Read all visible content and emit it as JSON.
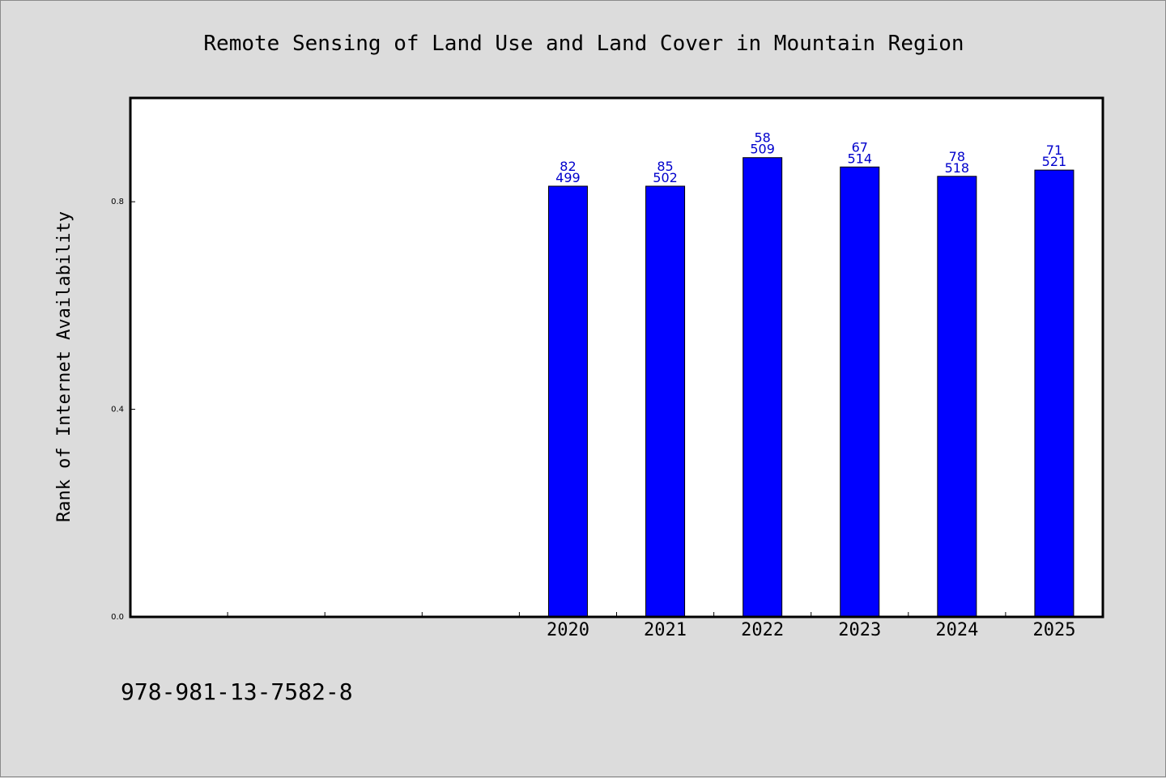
{
  "colors": {
    "background": "#dcdcdc",
    "plot_background": "#ffffff",
    "bar": "#0000ff",
    "bar_label": "#0000cc"
  },
  "note": "978-981-13-7582-8",
  "chart_data": {
    "type": "bar",
    "title": "Remote Sensing of Land Use and Land Cover in Mountain Region",
    "xlabel": "",
    "ylabel": "Rank of Internet Availability",
    "categories": [
      "",
      "",
      "",
      "",
      "2020",
      "2021",
      "2022",
      "2023",
      "2024",
      "2025"
    ],
    "values": [
      null,
      null,
      null,
      null,
      0.83,
      0.83,
      0.885,
      0.867,
      0.849,
      0.861
    ],
    "data_labels": [
      [],
      [],
      [],
      [],
      [
        "82",
        "499"
      ],
      [
        "85",
        "502"
      ],
      [
        "58",
        "509"
      ],
      [
        "67",
        "514"
      ],
      [
        "78",
        "518"
      ],
      [
        "71",
        "521"
      ]
    ],
    "ylim": [
      0,
      1.0
    ],
    "yticks": [
      0.0,
      0.4,
      0.8
    ],
    "ytick_labels": [
      "0.0",
      "0.4",
      "0.8"
    ],
    "grid": false,
    "legend": "none"
  }
}
